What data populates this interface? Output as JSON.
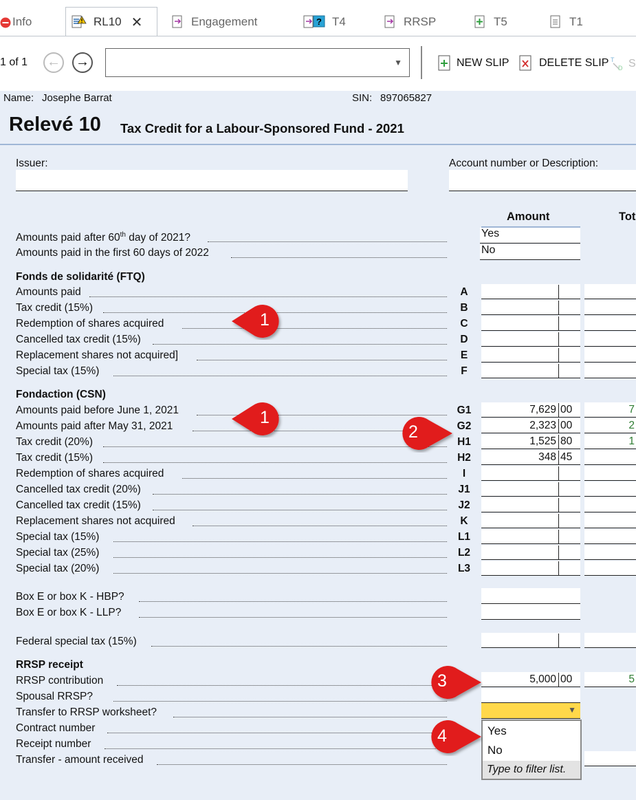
{
  "tabs": [
    {
      "label": "Info"
    },
    {
      "label": "RL10"
    },
    {
      "label": "Engagement"
    },
    {
      "label": "T4"
    },
    {
      "label": "RRSP"
    },
    {
      "label": "T5"
    },
    {
      "label": "T1"
    }
  ],
  "toolbar": {
    "page_indicator": "1 of 1",
    "combo_value": "",
    "new_slip": "NEW SLIP",
    "delete_slip": "DELETE SLIP",
    "partial_btn": "S"
  },
  "header": {
    "name_label": "Name:",
    "name_value": "Josephe Barrat",
    "sin_label": "SIN:",
    "sin_value": "897065827",
    "title_main": "Relevé 10",
    "title_sub": "Tax Credit for a Labour-Sponsored Fund - 2021"
  },
  "fields": {
    "issuer_label": "Issuer:",
    "account_label": "Account number or Description:"
  },
  "columns": {
    "amount": "Amount",
    "total": "Tot"
  },
  "paid_questions": [
    {
      "pre": "Amounts paid after 60",
      "sup": "th",
      "post": " day of 2021?",
      "answer": "Yes"
    },
    {
      "pre": "Amounts paid in the first 60 days of 2022",
      "sup": "",
      "post": "",
      "answer": "No"
    }
  ],
  "ftq": {
    "heading": "Fonds de solidarité (FTQ)",
    "rows": [
      {
        "label": "Amounts paid",
        "code": "A",
        "dollars": "",
        "cents": "",
        "total": ""
      },
      {
        "label": "Tax credit (15%)",
        "code": "B",
        "dollars": "",
        "cents": "",
        "total": ""
      },
      {
        "label": "Redemption of shares acquired",
        "code": "C",
        "dollars": "",
        "cents": "",
        "total": ""
      },
      {
        "label": "Cancelled tax credit (15%)",
        "code": "D",
        "dollars": "",
        "cents": "",
        "total": ""
      },
      {
        "label": "Replacement shares not acquired]",
        "code": "E",
        "dollars": "",
        "cents": "",
        "total": ""
      },
      {
        "label": "Special tax (15%)",
        "code": "F",
        "dollars": "",
        "cents": "",
        "total": ""
      }
    ]
  },
  "csn": {
    "heading": "Fondaction (CSN)",
    "rows": [
      {
        "label": "Amounts paid before June 1, 2021",
        "code": "G1",
        "dollars": "7,629",
        "cents": "00",
        "total": "7"
      },
      {
        "label": "Amounts paid after May 31, 2021",
        "code": "G2",
        "dollars": "2,323",
        "cents": "00",
        "total": "2"
      },
      {
        "label": "Tax credit (20%)",
        "code": "H1",
        "dollars": "1,525",
        "cents": "80",
        "total": "1"
      },
      {
        "label": "Tax credit (15%)",
        "code": "H2",
        "dollars": "348",
        "cents": "45",
        "total": ""
      },
      {
        "label": "Redemption of shares acquired",
        "code": "I",
        "dollars": "",
        "cents": "",
        "total": ""
      },
      {
        "label": "Cancelled tax credit (20%)",
        "code": "J1",
        "dollars": "",
        "cents": "",
        "total": ""
      },
      {
        "label": "Cancelled tax credit (15%)",
        "code": "J2",
        "dollars": "",
        "cents": "",
        "total": ""
      },
      {
        "label": "Replacement shares not acquired",
        "code": "K",
        "dollars": "",
        "cents": "",
        "total": ""
      },
      {
        "label": "Special tax (15%)",
        "code": "L1",
        "dollars": "",
        "cents": "",
        "total": ""
      },
      {
        "label": "Special tax (25%)",
        "code": "L2",
        "dollars": "",
        "cents": "",
        "total": ""
      },
      {
        "label": "Special tax (20%)",
        "code": "L3",
        "dollars": "",
        "cents": "",
        "total": ""
      }
    ]
  },
  "box_questions": [
    {
      "label": "Box E or box K - HBP?"
    },
    {
      "label": "Box E or box K - LLP?"
    }
  ],
  "federal": {
    "label": "Federal special tax (15%)"
  },
  "rrsp": {
    "heading": "RRSP receipt",
    "contribution_label": "RRSP contribution",
    "contribution_dollars": "5,000",
    "contribution_cents": "00",
    "contribution_total": "5",
    "spousal_label": "Spousal RRSP?",
    "transfer_label": "Transfer to RRSP worksheet?",
    "contract_label": "Contract number",
    "receipt_label": "Receipt number",
    "transfer_amount_label": "Transfer - amount received"
  },
  "dropdown": {
    "options": [
      "Yes",
      "No"
    ],
    "filter_hint": "Type to filter list."
  },
  "callouts": [
    "1",
    "1",
    "2",
    "3",
    "4"
  ],
  "colors": {
    "form_bg": "#e8eef7",
    "highlight": "#ffd84a",
    "callout_red": "#e11d1d",
    "total_green": "#2e7d32"
  }
}
